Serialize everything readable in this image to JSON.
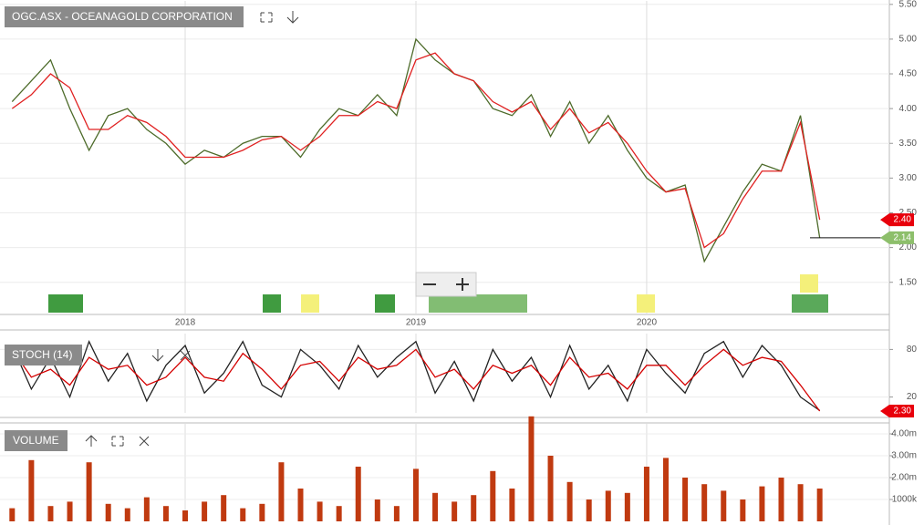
{
  "chart_data": [
    {
      "type": "line",
      "title": "OGC.ASX - OCEANAGOLD CORPORATION",
      "categories": [
        null,
        null,
        null,
        null,
        null,
        null,
        null,
        null,
        null,
        "2018",
        null,
        null,
        null,
        null,
        null,
        null,
        null,
        null,
        null,
        null,
        null,
        "2019",
        null,
        null,
        null,
        null,
        null,
        null,
        null,
        null,
        null,
        null,
        null,
        "2020",
        null,
        null,
        null,
        null,
        null,
        null,
        null,
        null,
        null
      ],
      "series": [
        {
          "color": "#4d6b2a",
          "values": [
            4.1,
            4.4,
            4.7,
            4.0,
            3.4,
            3.9,
            4.0,
            3.7,
            3.5,
            3.2,
            3.4,
            3.3,
            3.5,
            3.6,
            3.6,
            3.3,
            3.7,
            4.0,
            3.9,
            4.2,
            3.9,
            5.0,
            4.7,
            4.5,
            4.4,
            4.0,
            3.9,
            4.2,
            3.6,
            4.1,
            3.5,
            3.9,
            3.4,
            3.0,
            2.8,
            2.9,
            1.8,
            2.3,
            2.8,
            3.2,
            3.1,
            3.9,
            2.14
          ]
        },
        {
          "color": "#e02020",
          "values": [
            4.0,
            4.2,
            4.5,
            4.3,
            3.7,
            3.7,
            3.9,
            3.8,
            3.6,
            3.3,
            3.3,
            3.3,
            3.4,
            3.55,
            3.6,
            3.4,
            3.6,
            3.9,
            3.9,
            4.1,
            4.0,
            4.7,
            4.8,
            4.5,
            4.4,
            4.1,
            3.95,
            4.1,
            3.7,
            4.0,
            3.65,
            3.8,
            3.5,
            3.1,
            2.8,
            2.85,
            2.0,
            2.2,
            2.7,
            3.1,
            3.1,
            3.8,
            2.4
          ]
        }
      ],
      "markers": [
        {
          "value": 2.4,
          "label": "2.40",
          "color": "#e8000b"
        },
        {
          "value": 2.14,
          "label": "2.14",
          "color": "#8dbf6b"
        }
      ],
      "ylim": [
        1.05,
        5.55
      ],
      "yticks": [
        {
          "value": 1.5,
          "label": "1.50"
        },
        {
          "value": 2,
          "label": "2.00"
        },
        {
          "value": 2.5,
          "label": "2.50"
        },
        {
          "value": 3,
          "label": "3.00"
        },
        {
          "value": 3.5,
          "label": "3.50"
        },
        {
          "value": 4,
          "label": "4.00"
        },
        {
          "value": 4.5,
          "label": "4.50"
        },
        {
          "value": 5,
          "label": "5.00"
        },
        {
          "value": 5.5,
          "label": "5.50"
        }
      ],
      "grid": true
    },
    {
      "type": "line",
      "title": "STOCH (14)",
      "series": [
        {
          "color": "#222222",
          "values": [
            85,
            30,
            70,
            20,
            90,
            40,
            75,
            15,
            60,
            85,
            25,
            50,
            90,
            35,
            20,
            80,
            60,
            30,
            85,
            45,
            70,
            90,
            25,
            65,
            15,
            80,
            40,
            70,
            20,
            85,
            30,
            60,
            15,
            80,
            50,
            25,
            75,
            90,
            45,
            85,
            60,
            20,
            3
          ]
        },
        {
          "color": "#d40000",
          "values": [
            80,
            45,
            55,
            35,
            70,
            55,
            60,
            35,
            45,
            70,
            45,
            40,
            75,
            55,
            30,
            60,
            65,
            40,
            70,
            55,
            60,
            80,
            45,
            55,
            30,
            60,
            50,
            60,
            35,
            70,
            45,
            50,
            30,
            60,
            60,
            35,
            60,
            80,
            60,
            70,
            65,
            35,
            2.3
          ]
        }
      ],
      "markers": [
        {
          "value": 2.3,
          "label": "2.30",
          "color": "#e8000b"
        }
      ],
      "ylim": [
        0,
        100
      ],
      "yticks": [
        20,
        80
      ],
      "grid": true
    },
    {
      "type": "bar",
      "title": "VOLUME",
      "color": "#c03a10",
      "values": [
        600000,
        2800000,
        700000,
        900000,
        2700000,
        800000,
        600000,
        1100000,
        700000,
        500000,
        900000,
        1200000,
        600000,
        800000,
        2700000,
        1500000,
        900000,
        700000,
        2500000,
        1000000,
        700000,
        2400000,
        1300000,
        900000,
        1200000,
        2300000,
        1500000,
        4800000,
        3000000,
        1800000,
        1000000,
        1400000,
        1300000,
        2500000,
        2900000,
        2000000,
        1700000,
        1400000,
        1000000,
        1600000,
        2000000,
        1700000,
        1500000
      ],
      "ylim": [
        0,
        4500000
      ],
      "yticks": [
        {
          "value": 1000000,
          "label": "1000k"
        },
        {
          "value": 2000000,
          "label": "2.00m"
        },
        {
          "value": 3000000,
          "label": "3.00m"
        },
        {
          "value": 4000000,
          "label": "4.00m"
        }
      ],
      "grid": true
    }
  ]
}
